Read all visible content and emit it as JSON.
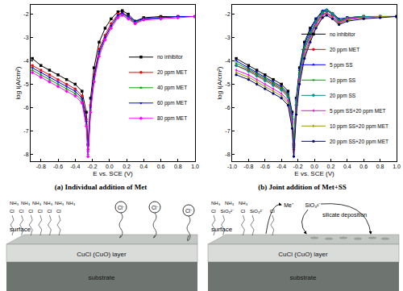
{
  "chart_data": [
    {
      "type": "line",
      "title": "(a) Individual addition of Met",
      "xlabel": "E vs. SCE (V)",
      "ylabel": "log i(A/cm²)",
      "x": [
        -0.9,
        -0.8,
        -0.7,
        -0.6,
        -0.5,
        -0.4,
        -0.32,
        -0.27,
        -0.25,
        -0.22,
        -0.18,
        -0.12,
        -0.05,
        0.02,
        0.1,
        0.15,
        0.22,
        0.3,
        0.4,
        0.6,
        0.8,
        1.0
      ],
      "series": [
        {
          "name": "no inhibitor",
          "color": "#000000",
          "marker": "square",
          "values": [
            -3.9,
            -4.2,
            -4.4,
            -4.6,
            -4.8,
            -5.0,
            -5.3,
            -6.2,
            -7.6,
            -5.6,
            -4.3,
            -3.2,
            -2.6,
            -2.2,
            -1.9,
            -1.85,
            -2.0,
            -2.3,
            -2.15,
            -2.1,
            -2.1,
            -2.1
          ]
        },
        {
          "name": "20 ppm MET",
          "color": "#ff0000",
          "marker": "circle",
          "values": [
            -4.2,
            -4.4,
            -4.6,
            -4.8,
            -5.0,
            -5.2,
            -5.5,
            -6.5,
            -7.8,
            -5.9,
            -4.6,
            -3.5,
            -2.9,
            -2.4,
            -2.0,
            -1.95,
            -2.1,
            -2.4,
            -2.2,
            -2.15,
            -2.1,
            -2.1
          ]
        },
        {
          "name": "40 ppm MET",
          "color": "#00a000",
          "marker": "triangle-up",
          "values": [
            -4.4,
            -4.6,
            -4.8,
            -5.0,
            -5.2,
            -5.4,
            -5.7,
            -6.7,
            -8.0,
            -6.1,
            -4.8,
            -3.7,
            -3.0,
            -2.5,
            -2.1,
            -2.0,
            -2.15,
            -2.35,
            -2.2,
            -2.15,
            -2.1,
            -2.1
          ]
        },
        {
          "name": "60 ppm MET",
          "color": "#0000ff",
          "marker": "triangle-down",
          "values": [
            -4.3,
            -4.5,
            -4.7,
            -4.9,
            -5.1,
            -5.3,
            -5.6,
            -6.6,
            -7.9,
            -6.0,
            -4.7,
            -3.6,
            -3.0,
            -2.5,
            -2.05,
            -1.95,
            -2.1,
            -2.3,
            -2.2,
            -2.15,
            -2.1,
            -2.1
          ]
        },
        {
          "name": "80 ppm MET",
          "color": "#ff00ff",
          "marker": "diamond",
          "values": [
            -4.5,
            -4.7,
            -4.9,
            -5.1,
            -5.3,
            -5.5,
            -5.8,
            -6.8,
            -8.1,
            -6.2,
            -4.9,
            -3.8,
            -3.1,
            -2.6,
            -2.15,
            -2.05,
            -2.2,
            -2.4,
            -2.25,
            -2.2,
            -2.15,
            -2.1
          ]
        }
      ],
      "xlim": [
        -0.92,
        1.0
      ],
      "xticks": [
        -0.8,
        -0.6,
        -0.4,
        -0.2,
        {
          "value": 0,
          "label": "0.0"
        },
        0.2,
        0.4,
        0.6,
        0.8,
        {
          "value": 1,
          "label": "1.0"
        }
      ],
      "ylim": [
        -8.3,
        -1.6
      ],
      "yticks": [
        -8,
        -7,
        -6,
        -5,
        -4,
        -3,
        -2
      ],
      "grid": false,
      "legend": "right"
    },
    {
      "type": "line",
      "title": "(b) Joint addition of Met+SS",
      "xlabel": "E vs. SCE (V)",
      "ylabel": "log i(A/cm²)",
      "x": [
        -0.95,
        -0.8,
        -0.7,
        -0.6,
        -0.5,
        -0.4,
        -0.32,
        -0.27,
        -0.25,
        -0.22,
        -0.18,
        -0.12,
        -0.05,
        0.02,
        0.1,
        0.15,
        0.22,
        0.3,
        0.4,
        0.6,
        0.8,
        1.0
      ],
      "series": [
        {
          "name": "no inhibitor",
          "color": "#000000",
          "marker": "square",
          "values": [
            -3.9,
            -4.2,
            -4.4,
            -4.6,
            -4.8,
            -5.0,
            -5.3,
            -6.2,
            -7.6,
            -5.6,
            -4.3,
            -3.2,
            -2.6,
            -2.2,
            -1.9,
            -1.85,
            -2.0,
            -2.3,
            -2.15,
            -2.1,
            -2.1,
            -2.1
          ]
        },
        {
          "name": "20 ppm MET",
          "color": "#ff0000",
          "marker": "circle",
          "values": [
            -4.2,
            -4.4,
            -4.6,
            -4.8,
            -5.0,
            -5.2,
            -5.5,
            -6.5,
            -7.8,
            -5.9,
            -4.6,
            -3.5,
            -2.9,
            -2.4,
            -2.0,
            -1.95,
            -2.1,
            -2.4,
            -2.2,
            -2.15,
            -2.1,
            -2.1
          ]
        },
        {
          "name": "5 ppm SS",
          "color": "#0000ff",
          "marker": "triangle-up",
          "values": [
            -4.0,
            -4.3,
            -4.5,
            -4.7,
            -4.9,
            -5.1,
            -5.4,
            -6.3,
            -7.5,
            -5.7,
            -4.4,
            -3.3,
            -2.7,
            -2.2,
            -1.85,
            -1.8,
            -1.95,
            -2.2,
            -2.15,
            -2.1,
            -2.1,
            -2.1
          ]
        },
        {
          "name": "10 ppm SS",
          "color": "#00a000",
          "marker": "triangle-down",
          "values": [
            -4.1,
            -4.35,
            -4.55,
            -4.75,
            -4.95,
            -5.15,
            -5.45,
            -6.4,
            -7.3,
            -5.8,
            -4.5,
            -3.4,
            -2.8,
            -2.3,
            -1.9,
            -1.8,
            -1.95,
            -2.25,
            -2.15,
            -2.1,
            -2.1,
            -2.1
          ]
        },
        {
          "name": "20 ppm SS",
          "color": "#008b8b",
          "marker": "diamond",
          "values": [
            -4.2,
            -4.45,
            -4.65,
            -4.85,
            -5.05,
            -5.25,
            -5.55,
            -6.5,
            -7.7,
            -5.9,
            -4.6,
            -3.5,
            -2.9,
            -2.35,
            -1.95,
            -1.85,
            -2.0,
            -2.3,
            -2.2,
            -2.1,
            -2.1,
            -2.1
          ]
        },
        {
          "name": "5 ppm SS+20 ppm MET",
          "color": "#ff00ff",
          "marker": "triangle-left",
          "values": [
            -4.4,
            -4.6,
            -4.8,
            -5.0,
            -5.2,
            -5.4,
            -5.7,
            -6.6,
            -7.9,
            -6.1,
            -4.8,
            -3.7,
            -3.0,
            -2.45,
            -2.05,
            -1.95,
            -2.1,
            -2.35,
            -2.2,
            -2.15,
            -2.1,
            -2.1
          ]
        },
        {
          "name": "10 ppm SS+20 ppm MET",
          "color": "#999900",
          "marker": "triangle-right",
          "values": [
            -4.5,
            -4.7,
            -4.9,
            -5.1,
            -5.3,
            -5.5,
            -5.8,
            -6.8,
            -8.0,
            -6.2,
            -4.9,
            -3.8,
            -3.1,
            -2.55,
            -2.1,
            -2.0,
            -2.15,
            -2.4,
            -2.25,
            -2.15,
            -2.1,
            -2.1
          ]
        },
        {
          "name": "20 ppm SS+20 ppm MET",
          "color": "#000080",
          "marker": "hexagon",
          "values": [
            -4.6,
            -4.8,
            -5.0,
            -5.2,
            -5.4,
            -5.6,
            -5.9,
            -6.9,
            -8.1,
            -6.3,
            -5.0,
            -3.9,
            -3.2,
            -2.6,
            -2.15,
            -2.05,
            -2.2,
            -2.45,
            -2.3,
            -2.2,
            -2.15,
            -2.1
          ]
        }
      ],
      "xlim": [
        -1.0,
        1.0
      ],
      "xticks": [
        {
          "value": -1,
          "label": "-1.0"
        },
        -0.8,
        -0.6,
        -0.4,
        -0.2,
        {
          "value": 0,
          "label": "0.0"
        },
        0.2,
        0.4,
        0.6,
        0.8,
        {
          "value": 1,
          "label": "1.0"
        }
      ],
      "ylim": [
        -8.3,
        -1.6
      ],
      "yticks": [
        -8,
        -7,
        -6,
        -5,
        -4,
        -3,
        -2
      ],
      "grid": false,
      "legend": "right"
    }
  ],
  "diagrams": [
    {
      "film": {
        "top": [
          "NH₃",
          "NH₃",
          "NH₃",
          "NH₃",
          "NH₃",
          "NH₃"
        ],
        "bottom": [
          "Cl",
          "Cl",
          "Cl",
          "Cl",
          "Cl",
          "Cl"
        ]
      },
      "ions": [
        "Cl⁻",
        "Cl⁻",
        "Cl⁻"
      ],
      "surface": "surface",
      "layer": "CuCl (CuO) layer",
      "substrate": "substrate"
    },
    {
      "film": {
        "top": [
          "NH₃",
          "NH₃",
          "NH₃"
        ],
        "bottom": [
          "Cl",
          "SiO₃²⁻",
          "Cl",
          "SiO₃²⁻",
          "Cl"
        ]
      },
      "ions": [
        "Me⁺",
        "SiO₃²⁻"
      ],
      "note": "silicate deposition",
      "surface": "surface",
      "layer": "CuCl (CuO) layer",
      "substrate": "substrate"
    }
  ]
}
